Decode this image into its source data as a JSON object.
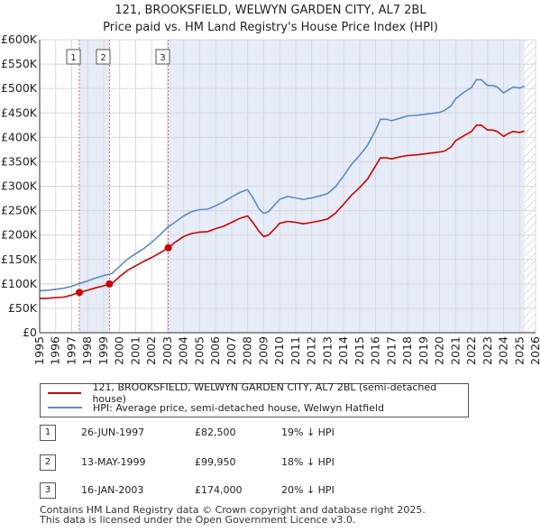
{
  "title": {
    "line1": "121, BROOKSFIELD, WELWYN GARDEN CITY, AL7 2BL",
    "line2": "Price paid vs. HM Land Registry's House Price Index (HPI)"
  },
  "chart_data": {
    "type": "line",
    "title": "121, BROOKSFIELD, WELWYN GARDEN CITY, AL7 2BL — Price paid vs. HM Land Registry's House Price Index (HPI)",
    "xlim": [
      1995,
      2026
    ],
    "ylim": [
      0,
      600000
    ],
    "x_ticks": [
      1995,
      1996,
      1997,
      1998,
      1999,
      2000,
      2001,
      2002,
      2003,
      2004,
      2005,
      2006,
      2007,
      2008,
      2009,
      2010,
      2011,
      2012,
      2013,
      2014,
      2015,
      2016,
      2017,
      2018,
      2019,
      2020,
      2021,
      2022,
      2023,
      2024,
      2025,
      2026
    ],
    "y_ticks": [
      0,
      50000,
      100000,
      150000,
      200000,
      250000,
      300000,
      350000,
      400000,
      450000,
      500000,
      550000,
      600000
    ],
    "y_tick_labels": [
      "£0",
      "£50K",
      "£100K",
      "£150K",
      "£200K",
      "£250K",
      "£300K",
      "£350K",
      "£400K",
      "£450K",
      "£500K",
      "£550K",
      "£600K"
    ],
    "series": [
      {
        "name": "121, BROOKSFIELD, WELWYN GARDEN CITY, AL7 2BL (semi-detached house)",
        "color": "#cc0000",
        "x": [
          1995.0,
          1995.5,
          1996.0,
          1996.5,
          1997.0,
          1997.48,
          1998.0,
          1998.5,
          1999.0,
          1999.36,
          1999.6,
          2000.0,
          2000.5,
          2001.0,
          2001.5,
          2002.0,
          2002.5,
          2003.04,
          2003.5,
          2004.0,
          2004.5,
          2005.0,
          2005.5,
          2006.0,
          2006.5,
          2007.0,
          2007.5,
          2008.0,
          2008.3,
          2008.7,
          2009.0,
          2009.3,
          2009.7,
          2010.0,
          2010.5,
          2011.0,
          2011.5,
          2012.0,
          2012.5,
          2013.0,
          2013.5,
          2014.0,
          2014.5,
          2015.0,
          2015.5,
          2016.0,
          2016.3,
          2016.7,
          2017.0,
          2017.5,
          2018.0,
          2018.5,
          2019.0,
          2019.5,
          2020.0,
          2020.3,
          2020.7,
          2021.0,
          2021.5,
          2022.0,
          2022.3,
          2022.6,
          2023.0,
          2023.3,
          2023.6,
          2024.0,
          2024.3,
          2024.6,
          2025.0,
          2025.3
        ],
        "values": [
          70000,
          70500,
          72000,
          73000,
          77000,
          82500,
          87000,
          92000,
          96000,
          99950,
          103000,
          115000,
          128000,
          137000,
          146000,
          154000,
          163000,
          174000,
          186000,
          197000,
          203000,
          206000,
          207000,
          213000,
          218000,
          226000,
          234000,
          239000,
          227000,
          208000,
          197000,
          200000,
          213000,
          224000,
          228000,
          226000,
          223000,
          226000,
          229000,
          233000,
          245000,
          263000,
          282000,
          297000,
          315000,
          342000,
          358000,
          358000,
          356000,
          360000,
          363000,
          364000,
          366000,
          368000,
          370000,
          372000,
          380000,
          393000,
          403000,
          412000,
          425000,
          425000,
          415000,
          415000,
          412000,
          402000,
          408000,
          412000,
          410000,
          413000
        ]
      },
      {
        "name": "HPI: Average price, semi-detached house, Welwyn Hatfield",
        "color": "#5a8ac6",
        "x": [
          1995.0,
          1995.5,
          1996.0,
          1996.5,
          1997.0,
          1997.5,
          1998.0,
          1998.5,
          1999.0,
          1999.5,
          2000.0,
          2000.5,
          2001.0,
          2001.5,
          2002.0,
          2002.5,
          2003.0,
          2003.5,
          2004.0,
          2004.5,
          2005.0,
          2005.5,
          2006.0,
          2006.5,
          2007.0,
          2007.5,
          2008.0,
          2008.3,
          2008.7,
          2009.0,
          2009.3,
          2009.7,
          2010.0,
          2010.5,
          2011.0,
          2011.5,
          2012.0,
          2012.5,
          2013.0,
          2013.5,
          2014.0,
          2014.5,
          2015.0,
          2015.5,
          2016.0,
          2016.3,
          2016.7,
          2017.0,
          2017.5,
          2018.0,
          2018.5,
          2019.0,
          2019.5,
          2020.0,
          2020.3,
          2020.7,
          2021.0,
          2021.5,
          2022.0,
          2022.3,
          2022.6,
          2023.0,
          2023.3,
          2023.6,
          2024.0,
          2024.3,
          2024.6,
          2025.0,
          2025.3
        ],
        "values": [
          86000,
          87000,
          89000,
          91000,
          95000,
          101000,
          106000,
          112000,
          117000,
          121000,
          136000,
          151000,
          162000,
          172000,
          185000,
          200000,
          216000,
          227000,
          239000,
          248000,
          252000,
          253000,
          260000,
          268000,
          278000,
          287000,
          293000,
          278000,
          254000,
          244000,
          248000,
          262000,
          273000,
          279000,
          276000,
          273000,
          276000,
          280000,
          285000,
          299000,
          321000,
          345000,
          363000,
          384000,
          415000,
          437000,
          437000,
          434000,
          439000,
          444000,
          445000,
          447000,
          449000,
          451000,
          455000,
          464000,
          479000,
          492000,
          502000,
          518000,
          518000,
          506000,
          506000,
          503000,
          491000,
          497000,
          503000,
          501000,
          505000
        ]
      }
    ],
    "annotations": [
      {
        "label": "1",
        "x": 1997.48,
        "date": "26-JUN-1997",
        "price_value": 82500
      },
      {
        "label": "2",
        "x": 1999.36,
        "date": "13-MAY-1999",
        "price_value": 99950
      },
      {
        "label": "3",
        "x": 2003.04,
        "date": "16-JAN-2003",
        "price_value": 174000
      }
    ],
    "shaded_regions": [
      {
        "from": 1997.48,
        "to": 1999.36
      },
      {
        "from": 2003.04,
        "to": 2025.3
      }
    ],
    "hatched_region": {
      "from": 2025.3,
      "to": 2026
    }
  },
  "legend": {
    "items": [
      {
        "label": "121, BROOKSFIELD, WELWYN GARDEN CITY, AL7 2BL (semi-detached house)",
        "color": "#cc0000"
      },
      {
        "label": "HPI: Average price, semi-detached house, Welwyn Hatfield",
        "color": "#5a8ac6"
      }
    ]
  },
  "transactions": [
    {
      "num": "1",
      "date": "26-JUN-1997",
      "price": "£82,500",
      "hpi": "19% ↓ HPI"
    },
    {
      "num": "2",
      "date": "13-MAY-1999",
      "price": "£99,950",
      "hpi": "18% ↓ HPI"
    },
    {
      "num": "3",
      "date": "16-JAN-2003",
      "price": "£174,000",
      "hpi": "20% ↓ HPI"
    }
  ],
  "footer": {
    "line1": "Contains HM Land Registry data © Crown copyright and database right 2025.",
    "line2": "This data is licensed under the Open Government Licence v3.0."
  }
}
